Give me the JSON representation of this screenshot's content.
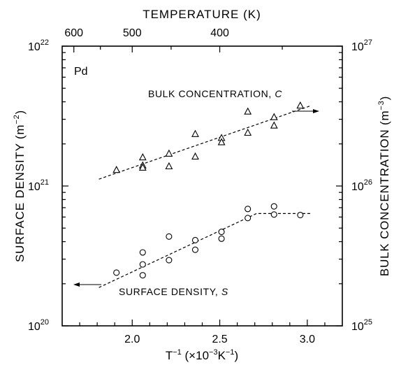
{
  "chart_data": {
    "type": "scatter",
    "material": "Pd",
    "title_top": "TEMPERATURE (K)",
    "xlabel": {
      "main": "T",
      "sup1": "−1",
      "rest_a": "  (×10",
      "sup2": "−3",
      "rest_b": "K",
      "sup3": "−1",
      "rest_c": ")"
    },
    "ylabel_left": {
      "main": "SURFACE DENSITY (m",
      "sup": "−2",
      "close": ")"
    },
    "ylabel_right": {
      "main": "BULK CONCENTRATION (m",
      "sup": "−3",
      "close": ")"
    },
    "xlim": [
      1.6,
      3.2
    ],
    "ylim_left_log": [
      20,
      22
    ],
    "ylim_right_log": [
      25,
      27
    ],
    "x_ticks": [
      {
        "value": 2.0,
        "label": "2.0"
      },
      {
        "value": 2.5,
        "label": "2.5"
      },
      {
        "value": 3.0,
        "label": "3.0"
      }
    ],
    "top_ticks": [
      {
        "T": 600,
        "label": "600"
      },
      {
        "T": 500,
        "label": "500"
      },
      {
        "T": 400,
        "label": "400"
      }
    ],
    "left_ticks": [
      {
        "exp": 20,
        "base": "10",
        "sup": "20"
      },
      {
        "exp": 21,
        "base": "10",
        "sup": "21"
      },
      {
        "exp": 22,
        "base": "10",
        "sup": "22"
      }
    ],
    "right_ticks": [
      {
        "exp": 25,
        "base": "10",
        "sup": "25"
      },
      {
        "exp": 26,
        "base": "10",
        "sup": "26"
      },
      {
        "exp": 27,
        "base": "10",
        "sup": "27"
      }
    ],
    "series": [
      {
        "name": "BULK CONCENTRATION, C",
        "label_main": "BULK CONCENTRATION, ",
        "label_var": "C",
        "marker": "triangle",
        "axis": "right",
        "points": [
          {
            "x": 1.91,
            "y": 1.3e+26
          },
          {
            "x": 2.06,
            "y": 1.6e+26
          },
          {
            "x": 2.06,
            "y": 1.4e+26
          },
          {
            "x": 2.06,
            "y": 1.35e+26
          },
          {
            "x": 2.21,
            "y": 1.7e+26
          },
          {
            "x": 2.21,
            "y": 1.38e+26
          },
          {
            "x": 2.36,
            "y": 2.35e+26
          },
          {
            "x": 2.36,
            "y": 1.62e+26
          },
          {
            "x": 2.51,
            "y": 2.2e+26
          },
          {
            "x": 2.51,
            "y": 2.05e+26
          },
          {
            "x": 2.66,
            "y": 3.4e+26
          },
          {
            "x": 2.66,
            "y": 2.4e+26
          },
          {
            "x": 2.81,
            "y": 3.1e+26
          },
          {
            "x": 2.81,
            "y": 2.7e+26
          },
          {
            "x": 2.96,
            "y": 3.75e+26
          }
        ],
        "fit": [
          {
            "x": 1.81,
            "y": 1.12e+26
          },
          {
            "x": 3.02,
            "y": 3.75e+26
          }
        ]
      },
      {
        "name": "SURFACE DENSITY, S",
        "label_main": "SURFACE DENSITY, ",
        "label_var": "S",
        "marker": "circle",
        "axis": "left",
        "points": [
          {
            "x": 1.91,
            "y": 2.4e+20
          },
          {
            "x": 2.06,
            "y": 3.35e+20
          },
          {
            "x": 2.06,
            "y": 2.75e+20
          },
          {
            "x": 2.06,
            "y": 2.3e+20
          },
          {
            "x": 2.21,
            "y": 4.35e+20
          },
          {
            "x": 2.21,
            "y": 2.95e+20
          },
          {
            "x": 2.36,
            "y": 4.1e+20
          },
          {
            "x": 2.36,
            "y": 3.5e+20
          },
          {
            "x": 2.51,
            "y": 4.7e+20
          },
          {
            "x": 2.51,
            "y": 4.2e+20
          },
          {
            "x": 2.66,
            "y": 6.85e+20
          },
          {
            "x": 2.66,
            "y": 5.9e+20
          },
          {
            "x": 2.81,
            "y": 7.15e+20
          },
          {
            "x": 2.81,
            "y": 6.25e+20
          },
          {
            "x": 2.96,
            "y": 6.2e+20
          }
        ],
        "fit": [
          {
            "x": 1.81,
            "y": 1.88e+20
          },
          {
            "x": 2.71,
            "y": 6.35e+20
          },
          {
            "x": 3.02,
            "y": 6.35e+20
          }
        ]
      }
    ]
  }
}
